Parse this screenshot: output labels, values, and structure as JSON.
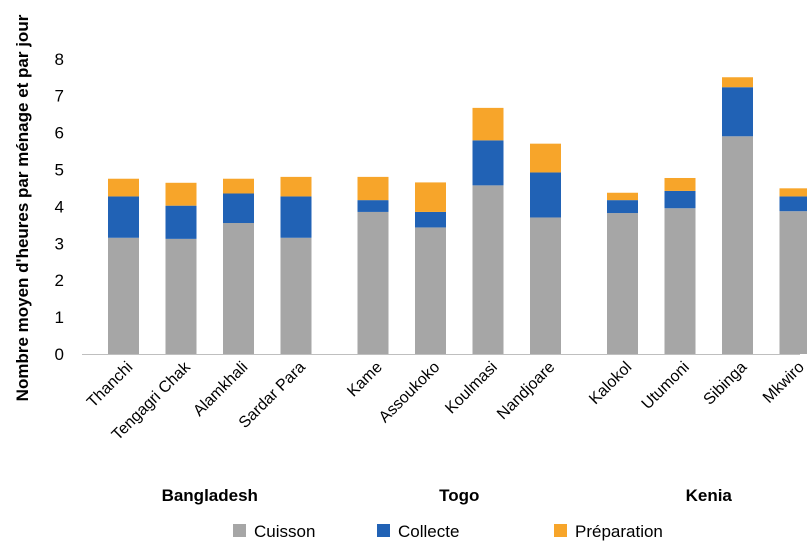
{
  "chart_data": {
    "type": "bar",
    "stacked": true,
    "title": "",
    "ylabel": "Nombre moyen d'heures par ménage et par jour",
    "xlabel": "",
    "ylim": [
      0,
      8
    ],
    "yticks": [
      0,
      1,
      2,
      3,
      4,
      5,
      6,
      7,
      8
    ],
    "grid": false,
    "legend_position": "bottom",
    "categories": [
      "Thanchi",
      "Tengagri Chak",
      "Alamkhali",
      "Sardar Para",
      "Kame",
      "Assoukoko",
      "Koulmasi",
      "Nandjoare",
      "Kalokol",
      "Utumoni",
      "Sibinga",
      "Mkwiro"
    ],
    "groups": [
      {
        "label": "Bangladesh",
        "categories": [
          "Thanchi",
          "Tengagri Chak",
          "Alamkhali",
          "Sardar Para"
        ]
      },
      {
        "label": "Togo",
        "categories": [
          "Kame",
          "Assoukoko",
          "Koulmasi",
          "Nandjoare"
        ]
      },
      {
        "label": "Kenia",
        "categories": [
          "Kalokol",
          "Utumoni",
          "Sibinga",
          "Mkwiro"
        ]
      }
    ],
    "series": [
      {
        "name": "Cuisson",
        "color": "#a6a6a6",
        "values": [
          3.15,
          3.12,
          3.55,
          3.15,
          3.85,
          3.43,
          4.57,
          3.7,
          3.82,
          3.95,
          5.9,
          3.87
        ]
      },
      {
        "name": "Collecte",
        "color": "#2162b5",
        "values": [
          1.12,
          0.9,
          0.8,
          1.12,
          0.32,
          0.42,
          1.22,
          1.22,
          0.35,
          0.47,
          1.33,
          0.4
        ]
      },
      {
        "name": "Préparation",
        "color": "#f7a52a",
        "values": [
          0.48,
          0.62,
          0.4,
          0.53,
          0.63,
          0.8,
          0.88,
          0.78,
          0.2,
          0.35,
          0.27,
          0.22
        ]
      }
    ]
  }
}
